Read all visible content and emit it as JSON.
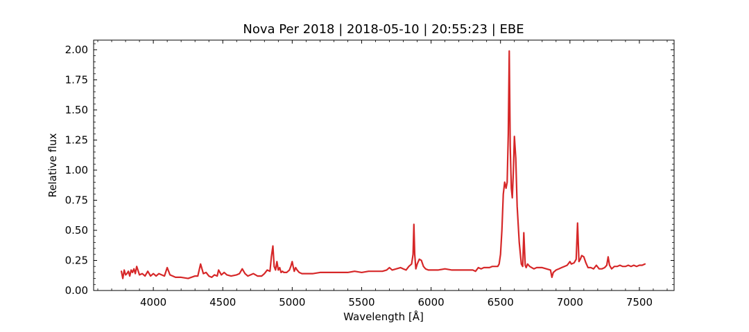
{
  "chart_data": {
    "type": "line",
    "title": "Nova Per 2018 | 2018-05-10 | 20:55:23 | EBE",
    "xlabel": "Wavelength [Å]",
    "ylabel": "Relative flux",
    "xlim": [
      3570,
      7750
    ],
    "ylim": [
      0.0,
      2.08
    ],
    "x_ticks": [
      4000,
      4500,
      5000,
      5500,
      6000,
      6500,
      7000,
      7500
    ],
    "x_tick_labels": [
      "4000",
      "4500",
      "5000",
      "5500",
      "6000",
      "6500",
      "7000",
      "7500"
    ],
    "y_ticks": [
      0.0,
      0.25,
      0.5,
      0.75,
      1.0,
      1.25,
      1.5,
      1.75,
      2.0
    ],
    "y_tick_labels": [
      "0.00",
      "0.25",
      "0.50",
      "0.75",
      "1.00",
      "1.25",
      "1.50",
      "1.75",
      "2.00"
    ],
    "grid": false,
    "line_color": "#d62728",
    "series": [
      {
        "x": [
          3770,
          3780,
          3790,
          3800,
          3810,
          3820,
          3830,
          3840,
          3850,
          3860,
          3870,
          3880,
          3900,
          3920,
          3940,
          3960,
          3980,
          4000,
          4020,
          4040,
          4060,
          4080,
          4100,
          4120,
          4140,
          4160,
          4200,
          4250,
          4300,
          4320,
          4340,
          4360,
          4380,
          4400,
          4420,
          4440,
          4460,
          4470,
          4490,
          4510,
          4530,
          4560,
          4600,
          4620,
          4640,
          4660,
          4680,
          4700,
          4720,
          4750,
          4780,
          4800,
          4820,
          4840,
          4850,
          4861,
          4870,
          4880,
          4890,
          4900,
          4910,
          4920,
          4930,
          4940,
          4960,
          4980,
          4990,
          5000,
          5007,
          5015,
          5025,
          5035,
          5050,
          5070,
          5100,
          5150,
          5200,
          5250,
          5300,
          5350,
          5400,
          5450,
          5500,
          5550,
          5600,
          5650,
          5680,
          5700,
          5720,
          5750,
          5780,
          5800,
          5820,
          5840,
          5860,
          5870,
          5876,
          5882,
          5890,
          5900,
          5915,
          5930,
          5945,
          5960,
          5980,
          6000,
          6050,
          6100,
          6150,
          6200,
          6250,
          6300,
          6320,
          6340,
          6360,
          6380,
          6400,
          6420,
          6440,
          6460,
          6480,
          6490,
          6500,
          6510,
          6520,
          6530,
          6540,
          6548,
          6556,
          6563,
          6570,
          6578,
          6585,
          6593,
          6600,
          6610,
          6620,
          6635,
          6650,
          6660,
          6668,
          6678,
          6685,
          6695,
          6710,
          6725,
          6740,
          6760,
          6780,
          6800,
          6830,
          6860,
          6870,
          6880,
          6890,
          6900,
          6920,
          6940,
          6960,
          6980,
          7000,
          7010,
          7030,
          7045,
          7055,
          7065,
          7075,
          7085,
          7100,
          7115,
          7130,
          7150,
          7170,
          7190,
          7210,
          7230,
          7250,
          7265,
          7275,
          7285,
          7300,
          7320,
          7340,
          7360,
          7380,
          7400,
          7420,
          7440,
          7460,
          7480,
          7500,
          7520,
          7540
        ],
        "y": [
          0.16,
          0.1,
          0.17,
          0.13,
          0.14,
          0.16,
          0.12,
          0.17,
          0.15,
          0.18,
          0.14,
          0.2,
          0.13,
          0.14,
          0.12,
          0.16,
          0.12,
          0.14,
          0.12,
          0.14,
          0.13,
          0.12,
          0.19,
          0.13,
          0.12,
          0.11,
          0.11,
          0.1,
          0.12,
          0.12,
          0.22,
          0.14,
          0.15,
          0.12,
          0.11,
          0.13,
          0.12,
          0.17,
          0.13,
          0.15,
          0.13,
          0.12,
          0.13,
          0.14,
          0.18,
          0.14,
          0.12,
          0.13,
          0.14,
          0.12,
          0.12,
          0.14,
          0.17,
          0.16,
          0.28,
          0.37,
          0.2,
          0.17,
          0.24,
          0.17,
          0.19,
          0.15,
          0.16,
          0.15,
          0.15,
          0.17,
          0.2,
          0.24,
          0.2,
          0.16,
          0.19,
          0.17,
          0.15,
          0.14,
          0.14,
          0.14,
          0.15,
          0.15,
          0.15,
          0.15,
          0.15,
          0.16,
          0.15,
          0.16,
          0.16,
          0.16,
          0.17,
          0.19,
          0.17,
          0.18,
          0.19,
          0.18,
          0.17,
          0.2,
          0.22,
          0.3,
          0.55,
          0.3,
          0.18,
          0.22,
          0.26,
          0.25,
          0.2,
          0.18,
          0.17,
          0.17,
          0.17,
          0.18,
          0.17,
          0.17,
          0.17,
          0.17,
          0.16,
          0.19,
          0.18,
          0.19,
          0.19,
          0.19,
          0.2,
          0.2,
          0.2,
          0.22,
          0.3,
          0.5,
          0.8,
          0.9,
          0.85,
          0.9,
          1.3,
          1.99,
          1.2,
          0.85,
          0.77,
          1.0,
          1.28,
          1.1,
          0.7,
          0.4,
          0.22,
          0.2,
          0.48,
          0.21,
          0.19,
          0.22,
          0.2,
          0.19,
          0.18,
          0.19,
          0.19,
          0.19,
          0.18,
          0.17,
          0.11,
          0.15,
          0.16,
          0.17,
          0.18,
          0.19,
          0.2,
          0.21,
          0.24,
          0.22,
          0.23,
          0.26,
          0.56,
          0.24,
          0.26,
          0.29,
          0.28,
          0.23,
          0.19,
          0.19,
          0.18,
          0.21,
          0.18,
          0.18,
          0.19,
          0.21,
          0.28,
          0.21,
          0.18,
          0.2,
          0.2,
          0.21,
          0.2,
          0.2,
          0.21,
          0.2,
          0.21,
          0.2,
          0.21,
          0.21,
          0.22
        ]
      }
    ]
  }
}
